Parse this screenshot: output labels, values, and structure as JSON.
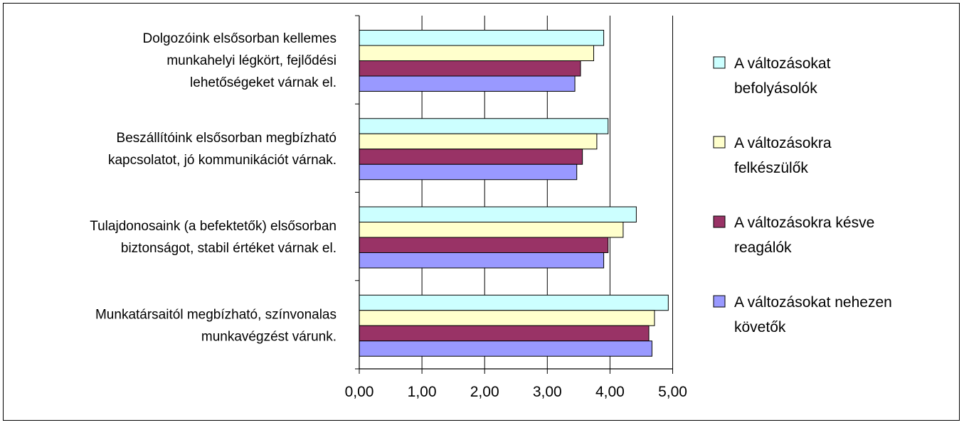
{
  "chart_data": {
    "type": "bar",
    "orientation": "horizontal",
    "categories": [
      [
        "Dolgozóink elsősorban kellemes",
        "munkahelyi légkört, fejlődési",
        "lehetőségeket várnak el."
      ],
      [
        "Beszállítóink elsősorban megbízható",
        "kapcsolatot, jó kommunikációt várnak."
      ],
      [
        "Tulajdonosaink (a befektetők) elsősorban",
        "biztonságot, stabil értéket várnak el."
      ],
      [
        "Munkatársaitól megbízható, színvonalas",
        "munkavégzést várunk."
      ]
    ],
    "series": [
      {
        "name": [
          "A változásokat",
          "befolyásolók"
        ],
        "color": "#ccffff",
        "values": [
          3.9,
          3.97,
          4.42,
          4.93
        ]
      },
      {
        "name": [
          "A változásokra",
          "felkészülők"
        ],
        "color": "#ffffcc",
        "values": [
          3.74,
          3.79,
          4.21,
          4.71
        ]
      },
      {
        "name": [
          "A változásokra késve",
          "reagálók"
        ],
        "color": "#993366",
        "values": [
          3.53,
          3.56,
          3.97,
          4.62
        ]
      },
      {
        "name": [
          "A változásokat nehezen",
          "követők"
        ],
        "color": "#9999ff",
        "values": [
          3.44,
          3.47,
          3.9,
          4.67
        ]
      }
    ],
    "x_ticks": [
      "0,00",
      "1,00",
      "2,00",
      "3,00",
      "4,00",
      "5,00"
    ],
    "xlim": [
      0,
      5
    ],
    "grid": "vertical",
    "legend_position": "right",
    "title": "",
    "xlabel": "",
    "ylabel": ""
  }
}
